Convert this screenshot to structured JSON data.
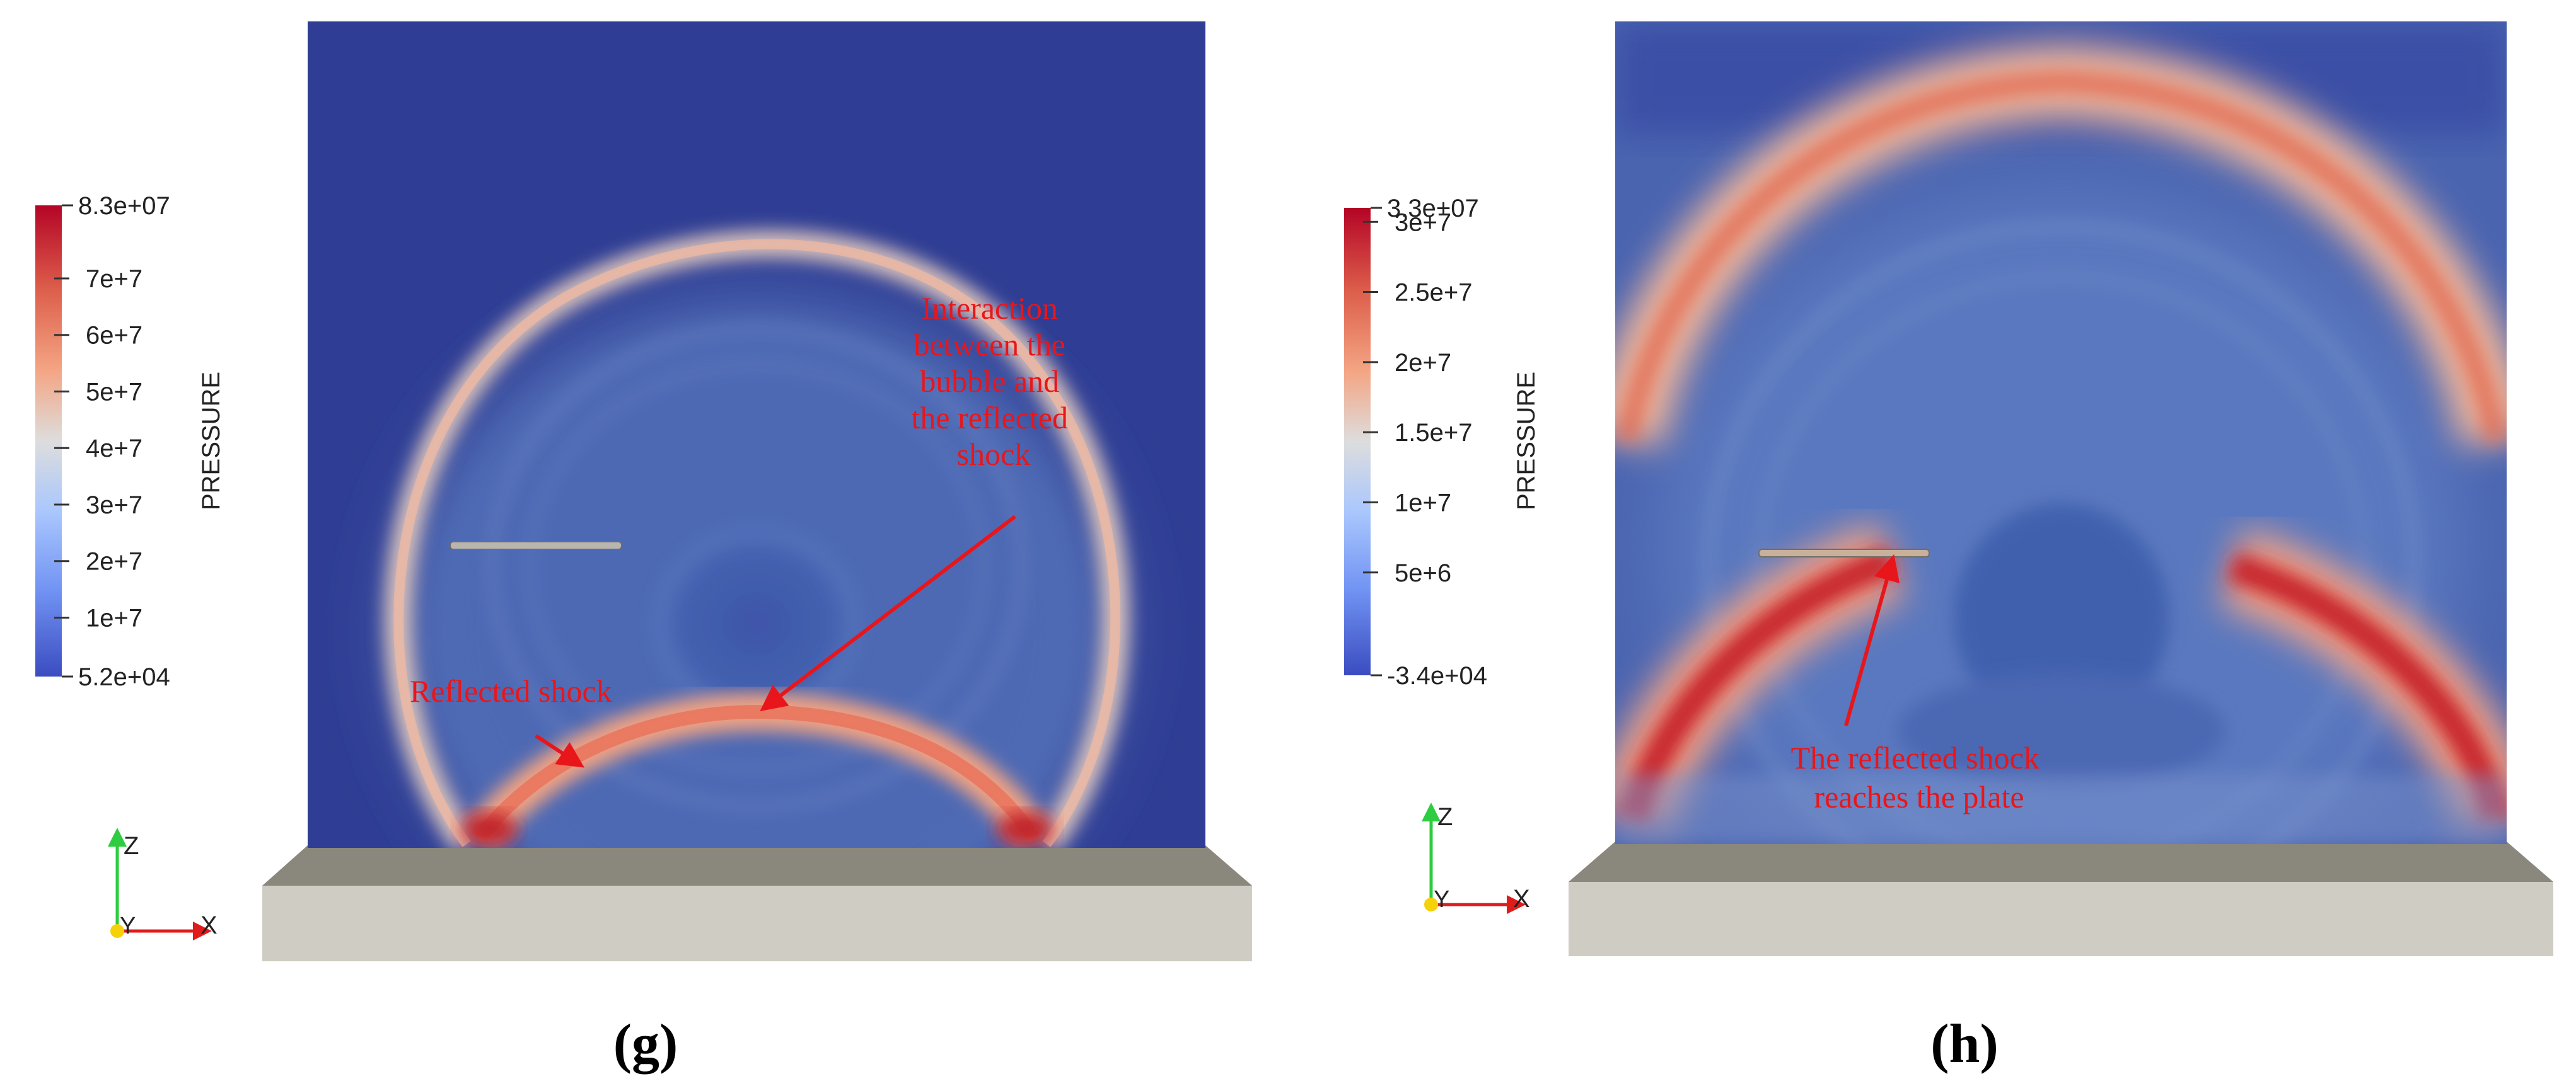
{
  "panels": [
    {
      "caption": "(g)",
      "colorbar": {
        "title": "PRESSURE",
        "max_label": "8.3e+07",
        "min_label": "5.2e+04",
        "ticks": [
          "7e+7",
          "6e+7",
          "5e+7",
          "4e+7",
          "3e+7",
          "2e+7",
          "1e+7"
        ]
      },
      "annotations": [
        {
          "lines": [
            "Interaction",
            "between the",
            "bubble and",
            "the reflected",
            "shock"
          ]
        },
        {
          "lines": [
            "Reflected shock"
          ]
        }
      ],
      "axes": {
        "z": "Z",
        "y": "Y",
        "x": "X"
      }
    },
    {
      "caption": "(h)",
      "colorbar": {
        "title": "PRESSURE",
        "max_label": "3.3e+07",
        "min_label": "-3.4e+04",
        "ticks": [
          "3e+7",
          "2.5e+7",
          "2e+7",
          "1.5e+7",
          "1e+7",
          "5e+6"
        ]
      },
      "annotations": [
        {
          "lines": [
            "The reflected shock",
            "reaches the plate"
          ]
        }
      ],
      "axes": {
        "z": "Z",
        "y": "Y",
        "x": "X"
      }
    }
  ],
  "colors": {
    "field_bg": "#2f3e94",
    "shock_red": "#d9463c",
    "shock_dark": "#b41a22",
    "annotation": "#e8161b",
    "plate_top": "#8a877d",
    "plate_front": "#cfcdc3"
  }
}
